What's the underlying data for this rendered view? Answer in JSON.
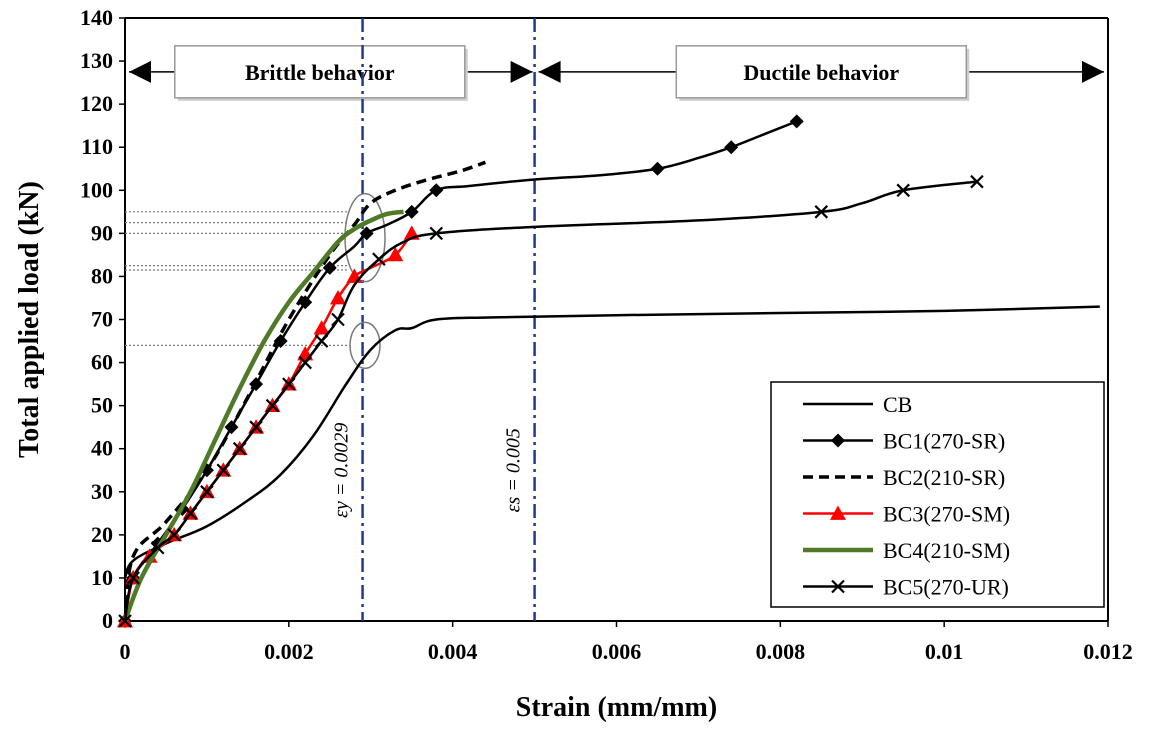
{
  "chart_data": {
    "type": "line",
    "xlabel": "Strain (mm/mm)",
    "ylabel": "Total applied load (kN)",
    "xlim": [
      0,
      0.012
    ],
    "ylim": [
      0,
      140
    ],
    "xticks": [
      0,
      0.002,
      0.004,
      0.006,
      0.008,
      0.01,
      0.012
    ],
    "xtick_labels": [
      "0",
      "0.002",
      "0.004",
      "0.006",
      "0.008",
      "0.01",
      "0.012"
    ],
    "yticks": [
      0,
      10,
      20,
      30,
      40,
      50,
      60,
      70,
      80,
      90,
      100,
      110,
      120,
      130,
      140
    ],
    "ytick_labels": [
      "0",
      "10",
      "20",
      "30",
      "40",
      "50",
      "60",
      "70",
      "80",
      "90",
      "100",
      "110",
      "120",
      "130",
      "140"
    ],
    "grid": false,
    "legend_position": "bottom-right",
    "regions": [
      {
        "label": "Brittle behavior",
        "x_start": 0,
        "x_end": 0.005
      },
      {
        "label": "Ductile behavior",
        "x_start": 0.005,
        "x_end": 0.012
      }
    ],
    "reference_lines": [
      {
        "x": 0.0029,
        "label": "εy = 0.0029",
        "color": "#1f3a93"
      },
      {
        "x": 0.005,
        "label": "εs = 0.005",
        "color": "#1f3a93"
      }
    ],
    "yield_levels": [
      95,
      92.5,
      90,
      82.5,
      81.5,
      64
    ],
    "yield_circles": [
      {
        "cx": 0.00293,
        "cy": 89,
        "label": ""
      },
      {
        "cx": 0.00293,
        "cy": 64,
        "label": ""
      }
    ],
    "series": [
      {
        "name": "CB",
        "color": "#000000",
        "dash": "solid",
        "marker": "none",
        "x": [
          0,
          0.0001,
          0.0005,
          0.001,
          0.0015,
          0.0019,
          0.0023,
          0.0027,
          0.003,
          0.0033,
          0.0035,
          0.0038,
          0.0045,
          0.006,
          0.008,
          0.01,
          0.0119
        ],
        "y": [
          10,
          14,
          18,
          22,
          28,
          34,
          43,
          55,
          63,
          67.5,
          68,
          70,
          70.5,
          71,
          71.5,
          72,
          73
        ]
      },
      {
        "name": "BC1(270-SR)",
        "color": "#000000",
        "dash": "solid",
        "marker": "diamond",
        "x": [
          0,
          0.0001,
          0.0004,
          0.0007,
          0.001,
          0.0013,
          0.0016,
          0.0019,
          0.0022,
          0.0025,
          0.0028,
          0.00295,
          0.0032,
          0.0035,
          0.0038,
          0.0042,
          0.005,
          0.0058,
          0.0065,
          0.007,
          0.0074,
          0.0078,
          0.0082
        ],
        "y": [
          0,
          10,
          18,
          26,
          35,
          45,
          55,
          65,
          74,
          82,
          87,
          90,
          92,
          95,
          100,
          101,
          102.5,
          103.5,
          105,
          107.5,
          110,
          113,
          116
        ],
        "marker_indices": [
          0,
          1,
          2,
          3,
          4,
          5,
          6,
          7,
          8,
          9,
          11,
          13,
          14,
          18,
          20,
          22
        ]
      },
      {
        "name": "BC2(210-SR)",
        "color": "#000000",
        "dash": "dashed",
        "marker": "none",
        "x": [
          0,
          0.0001,
          0.0005,
          0.001,
          0.0015,
          0.002,
          0.0025,
          0.0028,
          0.003,
          0.0033,
          0.0037,
          0.0041,
          0.0044
        ],
        "y": [
          0,
          15,
          23,
          35,
          52,
          70,
          85,
          92,
          97,
          100,
          102.5,
          104.5,
          106.5
        ]
      },
      {
        "name": "BC3(270-SM)",
        "color": "#ff0000",
        "dash": "solid",
        "marker": "triangle",
        "x": [
          0,
          0.0001,
          0.0003,
          0.0006,
          0.0008,
          0.001,
          0.0012,
          0.0014,
          0.0016,
          0.0018,
          0.002,
          0.0022,
          0.0024,
          0.0026,
          0.0028,
          0.003,
          0.0033,
          0.0035
        ],
        "y": [
          0,
          10,
          15,
          20,
          25,
          30,
          35,
          40,
          45,
          50,
          55,
          62,
          68,
          75,
          80,
          82,
          85,
          90
        ],
        "marker_indices": [
          0,
          1,
          2,
          3,
          4,
          5,
          6,
          7,
          8,
          9,
          10,
          11,
          12,
          13,
          14,
          16,
          17
        ]
      },
      {
        "name": "BC4(210-SM)",
        "color": "#4f7a28",
        "dash": "solid",
        "marker": "none",
        "x": [
          0,
          0.0002,
          0.0005,
          0.0008,
          0.0011,
          0.0014,
          0.0017,
          0.002,
          0.0023,
          0.0026,
          0.0028,
          0.003,
          0.0032,
          0.0034
        ],
        "y": [
          0,
          10,
          20,
          30,
          42,
          54,
          65,
          74,
          81,
          88,
          91,
          93,
          94.5,
          95
        ]
      },
      {
        "name": "BC5(270-UR)",
        "color": "#000000",
        "dash": "solid",
        "marker": "x",
        "x": [
          0,
          0.0001,
          0.0004,
          0.0006,
          0.0008,
          0.001,
          0.0012,
          0.0014,
          0.0016,
          0.0018,
          0.002,
          0.0022,
          0.0024,
          0.0026,
          0.0028,
          0.0031,
          0.0034,
          0.0038,
          0.005,
          0.007,
          0.0085,
          0.009,
          0.0095,
          0.0104
        ],
        "y": [
          0,
          10,
          17,
          20,
          25,
          30,
          35,
          40,
          45,
          50,
          55,
          60,
          65,
          70,
          78,
          84,
          88,
          90,
          91.5,
          93,
          95,
          97,
          100,
          102
        ],
        "marker_indices": [
          0,
          1,
          2,
          3,
          4,
          5,
          6,
          7,
          8,
          9,
          10,
          11,
          12,
          13,
          15,
          17,
          20,
          22,
          23
        ]
      }
    ]
  }
}
